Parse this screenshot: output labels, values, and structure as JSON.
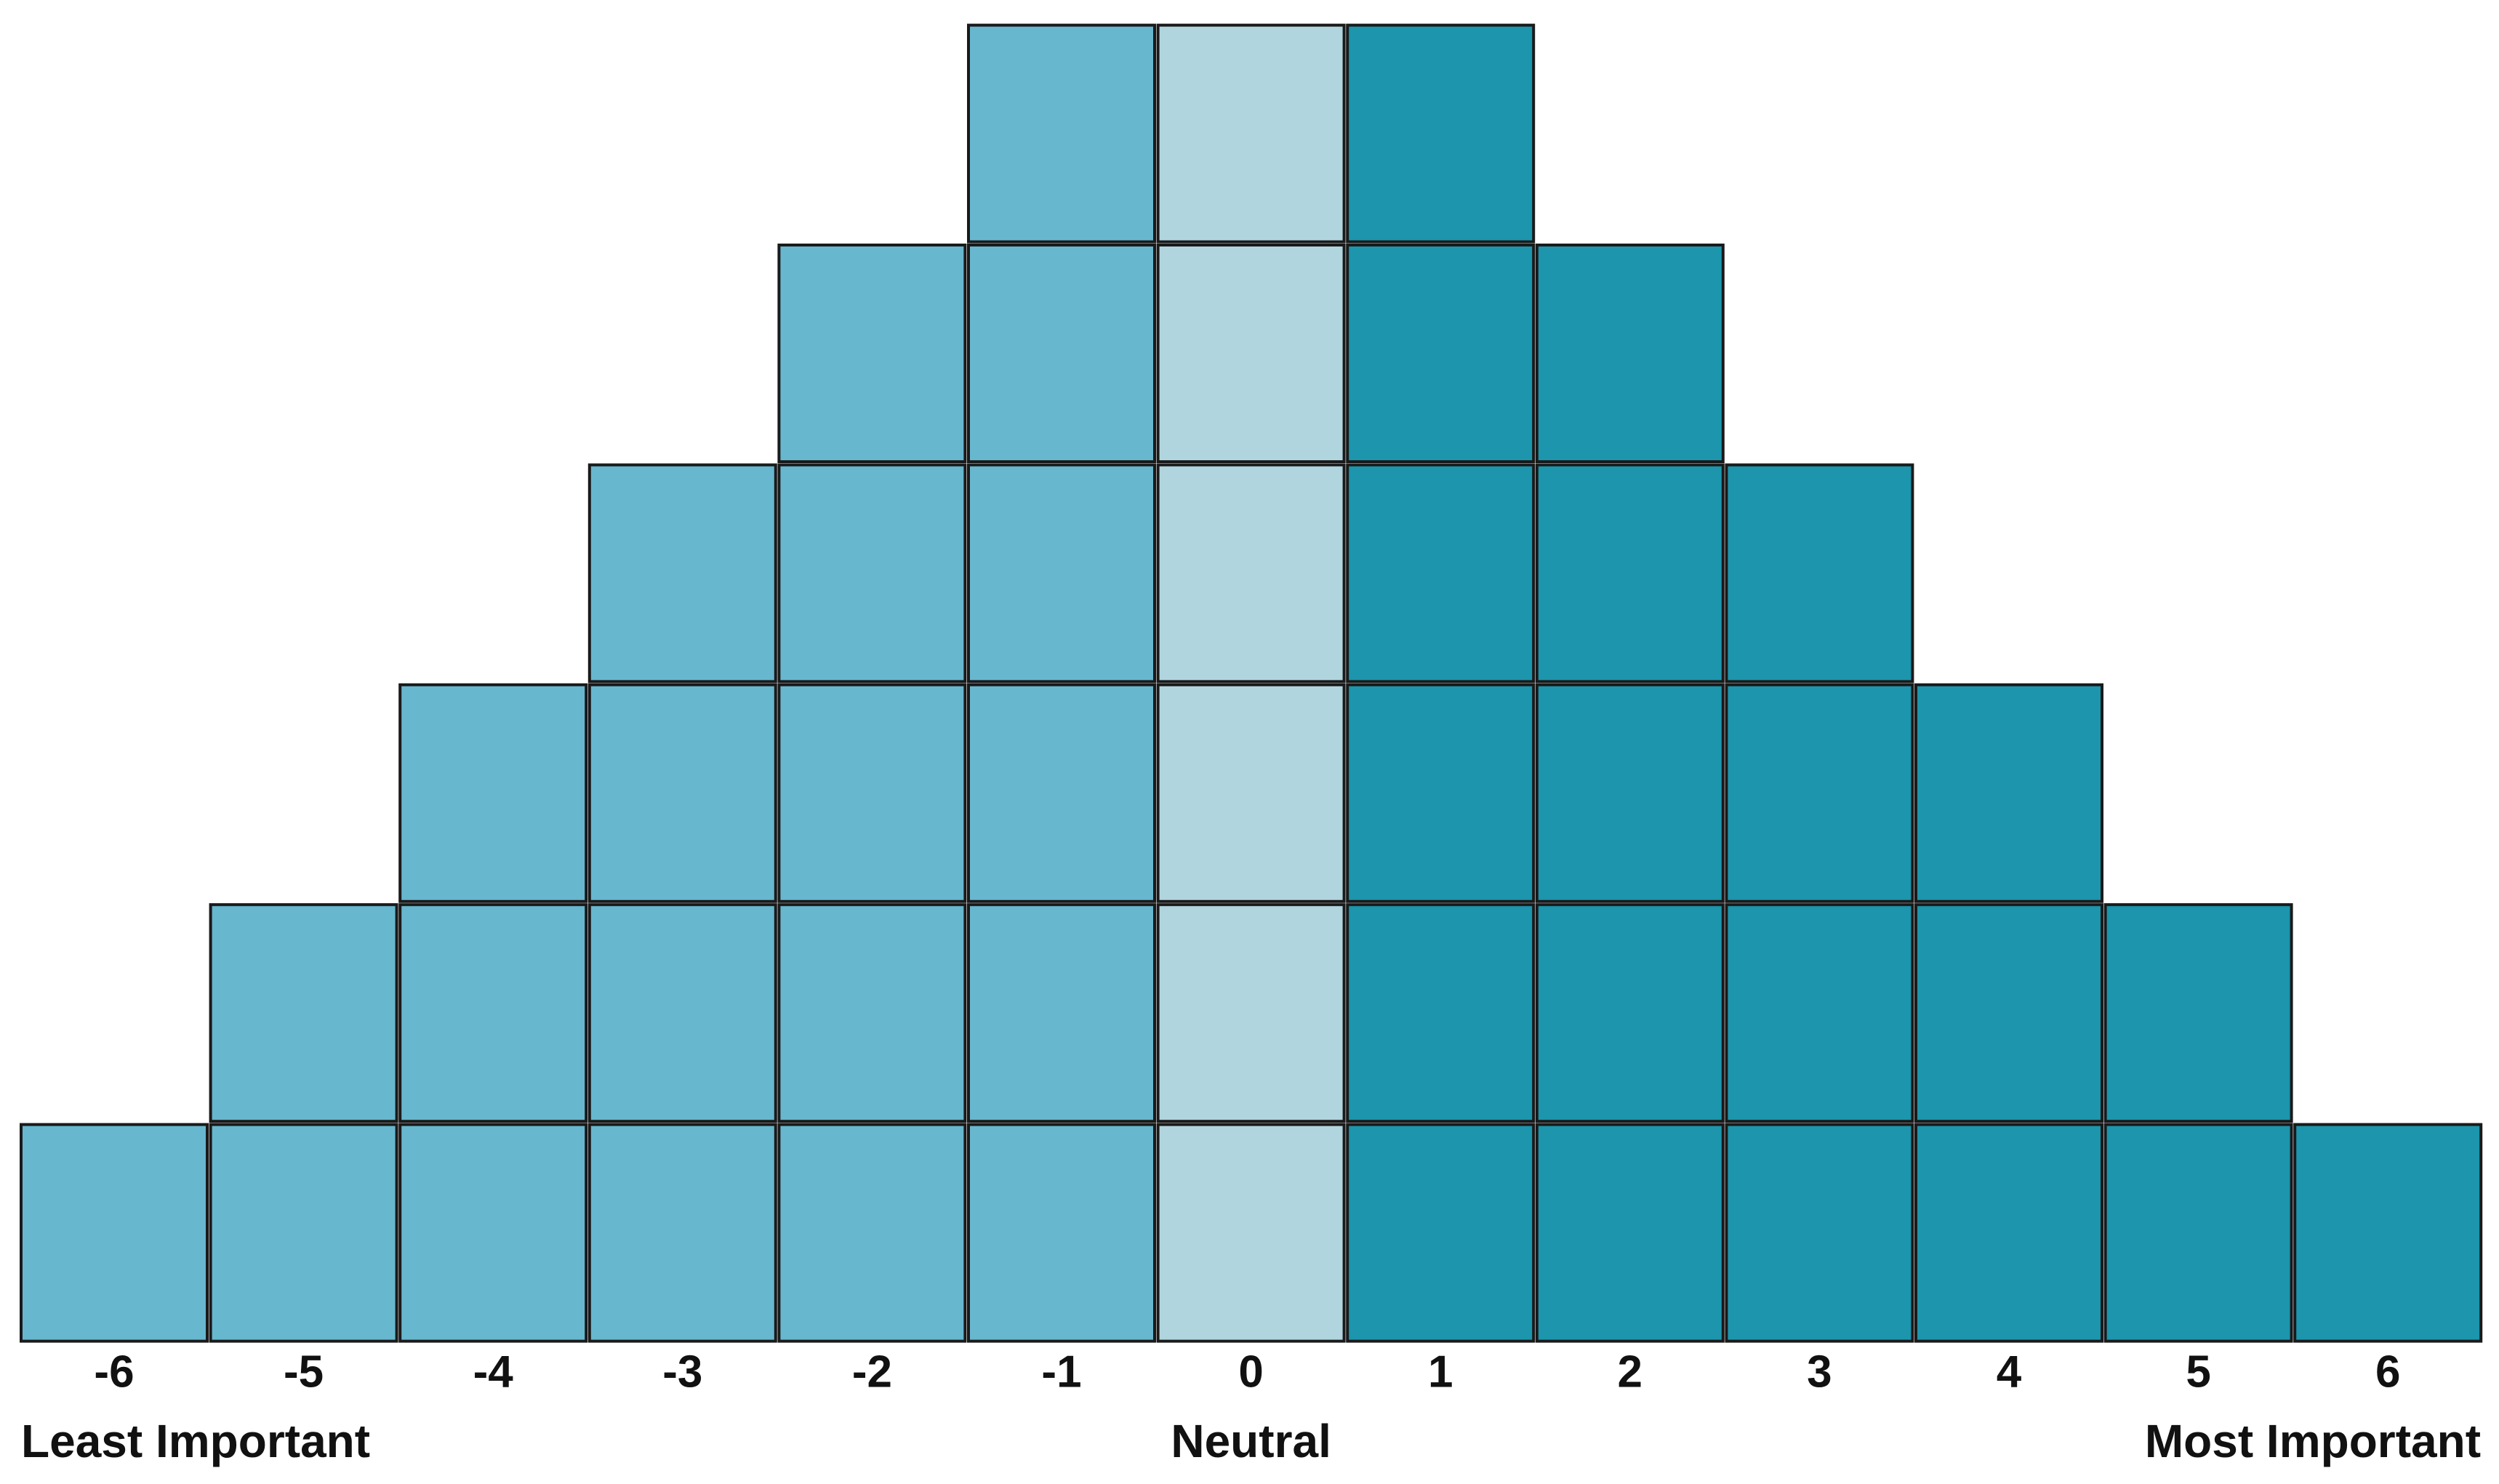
{
  "columns": [
    {
      "label": "-6",
      "cells": 1,
      "color": "#67b7cf"
    },
    {
      "label": "-5",
      "cells": 2,
      "color": "#67b7cf"
    },
    {
      "label": "-4",
      "cells": 3,
      "color": "#67b7cf"
    },
    {
      "label": "-3",
      "cells": 4,
      "color": "#67b7cf"
    },
    {
      "label": "-2",
      "cells": 5,
      "color": "#67b7cf"
    },
    {
      "label": "-1",
      "cells": 6,
      "color": "#67b7cf"
    },
    {
      "label": "0",
      "cells": 6,
      "color": "#b0d5de"
    },
    {
      "label": "1",
      "cells": 6,
      "color": "#1c95ad"
    },
    {
      "label": "2",
      "cells": 5,
      "color": "#1c95ad"
    },
    {
      "label": "3",
      "cells": 4,
      "color": "#1c95ad"
    },
    {
      "label": "4",
      "cells": 3,
      "color": "#1c95ad"
    },
    {
      "label": "5",
      "cells": 2,
      "color": "#1c95ad"
    },
    {
      "label": "6",
      "cells": 1,
      "color": "#1c95ad"
    }
  ],
  "anchors": {
    "left": "Least Important",
    "center": "Neutral",
    "right": "Most Important"
  }
}
